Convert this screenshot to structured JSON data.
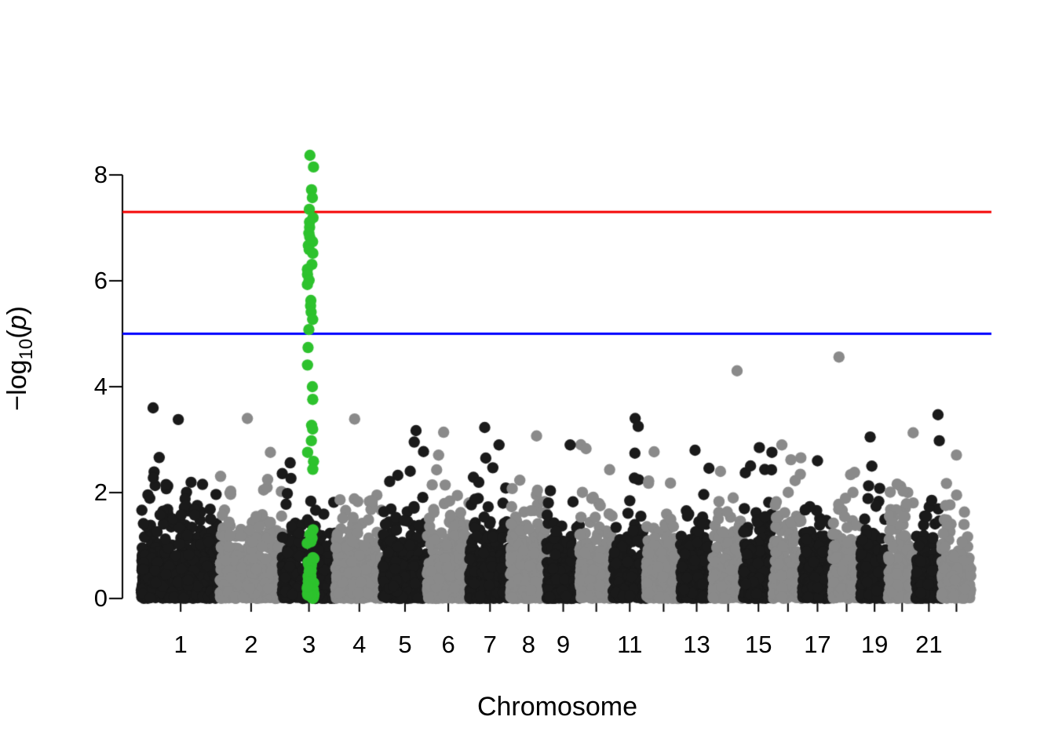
{
  "figure": {
    "background_color": "#ffffff",
    "text_color": "#000000"
  },
  "chart_data": {
    "type": "scatter",
    "subtype": "manhattan",
    "title": "",
    "xlabel": "Chromosome",
    "ylabel": {
      "prefix": "−log",
      "subscript": "10",
      "arg_open": "(",
      "arg": "p",
      "arg_close": ")"
    },
    "grid": false,
    "legend": false,
    "y_axis": {
      "ticks": [
        0,
        2,
        4,
        6,
        8
      ],
      "tick_labels": [
        "0",
        "2",
        "4",
        "6",
        "8"
      ],
      "range": [
        0,
        8.45
      ]
    },
    "x_axis": {
      "ticks_at_chromosomes": [
        1,
        2,
        3,
        4,
        5,
        6,
        7,
        8,
        9,
        10,
        11,
        12,
        13,
        14,
        15,
        16,
        17,
        18,
        19,
        20,
        21,
        22
      ],
      "labeled_ticks": [
        {
          "chr": 1,
          "text": "1"
        },
        {
          "chr": 2,
          "text": "2"
        },
        {
          "chr": 3,
          "text": "3"
        },
        {
          "chr": 4,
          "text": "4"
        },
        {
          "chr": 5,
          "text": "5"
        },
        {
          "chr": 6,
          "text": "6"
        },
        {
          "chr": 7,
          "text": "7"
        },
        {
          "chr": 8,
          "text": "8"
        },
        {
          "chr": 9,
          "text": "9"
        },
        {
          "chr": 11,
          "text": "11"
        },
        {
          "chr": 13,
          "text": "13"
        },
        {
          "chr": 15,
          "text": "15"
        },
        {
          "chr": 17,
          "text": "17"
        },
        {
          "chr": 19,
          "text": "19"
        },
        {
          "chr": 21,
          "text": "21"
        }
      ]
    },
    "colors": {
      "odd_chromosome_points": "#1a1a1a",
      "even_chromosome_points": "#8a8a8a",
      "highlight_points": "#2dc22d",
      "genomewide_line": "#f40000",
      "suggestive_line": "#0000ff",
      "axis": "#000000"
    },
    "threshold_lines": [
      {
        "name": "genome-wide significance",
        "value": 7.3,
        "color": "#f40000"
      },
      {
        "name": "suggestive significance",
        "value": 5.0,
        "color": "#0000ff"
      }
    ],
    "chromosomes": [
      {
        "chr": 1,
        "relative_width": 100,
        "n_points": 720
      },
      {
        "chr": 2,
        "relative_width": 79,
        "n_points": 569
      },
      {
        "chr": 3,
        "relative_width": 68,
        "n_points": 490
      },
      {
        "chr": 4,
        "relative_width": 60,
        "n_points": 432
      },
      {
        "chr": 5,
        "relative_width": 56,
        "n_points": 403
      },
      {
        "chr": 6,
        "relative_width": 54,
        "n_points": 389
      },
      {
        "chr": 7,
        "relative_width": 52,
        "n_points": 374
      },
      {
        "chr": 8,
        "relative_width": 46,
        "n_points": 331
      },
      {
        "chr": 9,
        "relative_width": 42,
        "n_points": 302
      },
      {
        "chr": 10,
        "relative_width": 42,
        "n_points": 302
      },
      {
        "chr": 11,
        "relative_width": 43,
        "n_points": 310
      },
      {
        "chr": 12,
        "relative_width": 43,
        "n_points": 310
      },
      {
        "chr": 13,
        "relative_width": 41,
        "n_points": 295
      },
      {
        "chr": 14,
        "relative_width": 39,
        "n_points": 281
      },
      {
        "chr": 15,
        "relative_width": 38,
        "n_points": 274
      },
      {
        "chr": 16,
        "relative_width": 37,
        "n_points": 266
      },
      {
        "chr": 17,
        "relative_width": 38,
        "n_points": 274
      },
      {
        "chr": 18,
        "relative_width": 36,
        "n_points": 259
      },
      {
        "chr": 19,
        "relative_width": 35,
        "n_points": 252
      },
      {
        "chr": 20,
        "relative_width": 35,
        "n_points": 252
      },
      {
        "chr": 21,
        "relative_width": 33,
        "n_points": 238
      },
      {
        "chr": 22,
        "relative_width": 37,
        "n_points": 266
      }
    ],
    "background_max_neglog10p": 3.0,
    "highlight": {
      "chromosome": 3,
      "position_fraction": 0.53,
      "color": "#2dc22d",
      "values": [
        8.37,
        8.15,
        7.72,
        7.57,
        7.35,
        7.19,
        7.11,
        7.01,
        6.9,
        6.83,
        6.74,
        6.67,
        6.59,
        6.52,
        6.31,
        6.22,
        6.12,
        6.01,
        5.93,
        5.63,
        5.53,
        5.41,
        5.27,
        5.08,
        4.74,
        4.41,
        4.0,
        3.76,
        3.27,
        3.2,
        2.98,
        2.76,
        2.59,
        2.44
      ],
      "n_low_points": 55,
      "low_points_max": 2.35
    },
    "notable_points": [
      {
        "chr": 1,
        "value": 3.6,
        "pos": 0.15
      },
      {
        "chr": 1,
        "value": 3.38,
        "pos": 0.47
      },
      {
        "chr": 2,
        "value": 3.4,
        "pos": 0.44
      },
      {
        "chr": 4,
        "value": 3.39,
        "pos": 0.4
      },
      {
        "chr": 5,
        "value": 3.17,
        "pos": 0.75
      },
      {
        "chr": 6,
        "value": 3.14,
        "pos": 0.39
      },
      {
        "chr": 7,
        "value": 3.23,
        "pos": 0.37
      },
      {
        "chr": 7,
        "value": 2.9,
        "pos": 0.72
      },
      {
        "chr": 8,
        "value": 3.07,
        "pos": 0.72
      },
      {
        "chr": 9,
        "value": 2.9,
        "pos": 0.71
      },
      {
        "chr": 10,
        "value": 2.83,
        "pos": 0.19
      },
      {
        "chr": 11,
        "value": 3.4,
        "pos": 0.66
      },
      {
        "chr": 11,
        "value": 3.25,
        "pos": 0.75
      },
      {
        "chr": 12,
        "value": 2.77,
        "pos": 0.22
      },
      {
        "chr": 13,
        "value": 2.8,
        "pos": 0.45
      },
      {
        "chr": 14,
        "value": 4.3,
        "pos": 0.79
      },
      {
        "chr": 14,
        "value": 2.4,
        "pos": 0.25
      },
      {
        "chr": 15,
        "value": 2.85,
        "pos": 0.53
      },
      {
        "chr": 15,
        "value": 2.76,
        "pos": 0.95
      },
      {
        "chr": 16,
        "value": 2.9,
        "pos": 0.29
      },
      {
        "chr": 16,
        "value": 2.62,
        "pos": 0.6
      },
      {
        "chr": 17,
        "value": 2.6,
        "pos": 0.5
      },
      {
        "chr": 18,
        "value": 4.56,
        "pos": 0.23
      },
      {
        "chr": 19,
        "value": 3.05,
        "pos": 0.34
      },
      {
        "chr": 19,
        "value": 2.5,
        "pos": 0.4
      },
      {
        "chr": 20,
        "value": 3.13,
        "pos": 0.9
      },
      {
        "chr": 21,
        "value": 3.47,
        "pos": 0.85
      },
      {
        "chr": 21,
        "value": 2.98,
        "pos": 0.9
      },
      {
        "chr": 22,
        "value": 2.71,
        "pos": 0.5
      }
    ]
  }
}
